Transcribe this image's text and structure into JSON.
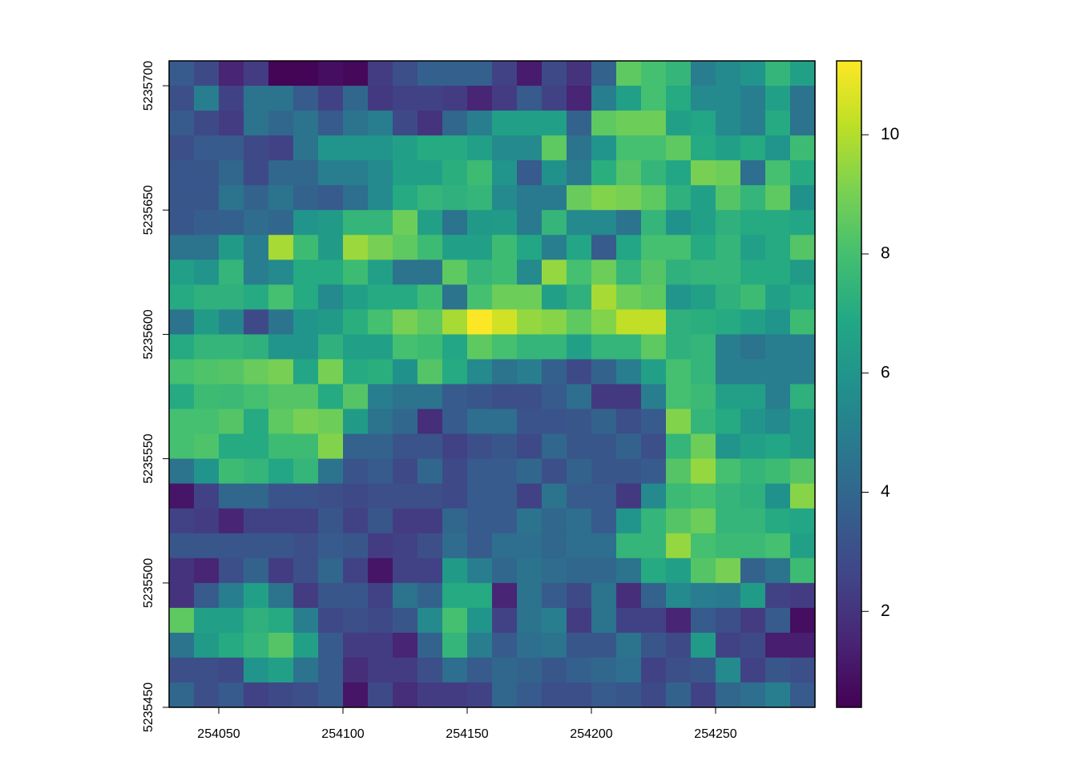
{
  "chart_data": {
    "type": "raster",
    "colormap": "viridis",
    "xlim": [
      254030,
      254290
    ],
    "ylim": [
      5235450,
      5235710
    ],
    "xticks": [
      254050,
      254100,
      254150,
      254200,
      254250
    ],
    "yticks": [
      5235450,
      5235500,
      5235550,
      5235600,
      5235650,
      5235700
    ],
    "zlim": [
      0.39,
      11.24
    ],
    "zticks": [
      2,
      4,
      6,
      8,
      10
    ],
    "values": [
      [
        3.5,
        2.8,
        1.5,
        2.3,
        0.5,
        0.5,
        0.8,
        0.6,
        2.3,
        3,
        3.7,
        3.7,
        3.7,
        2.5,
        1.2,
        2.8,
        2,
        3.8,
        8.5,
        8,
        7.5,
        5,
        5.5,
        6,
        7.5,
        6.5
      ],
      [
        3,
        5,
        2.5,
        4.5,
        4.5,
        3.5,
        2.5,
        4,
        2.2,
        2.5,
        2.5,
        2.3,
        1.5,
        2.3,
        3.5,
        2.5,
        1.5,
        5,
        6.5,
        8,
        7,
        5.5,
        5.5,
        5,
        6.5,
        4.5
      ],
      [
        3.5,
        2.8,
        2.3,
        4.5,
        4,
        4.5,
        3.5,
        4.5,
        5,
        2.8,
        2,
        4,
        5,
        6.5,
        6.5,
        6.5,
        3.8,
        8.5,
        8.8,
        8.8,
        6.5,
        6.8,
        5.5,
        5,
        7,
        4.5
      ],
      [
        3,
        3.5,
        3.5,
        2.8,
        2.5,
        4.5,
        6,
        6,
        6,
        6.5,
        7,
        7,
        6.5,
        5.5,
        5.5,
        8.5,
        4.5,
        6,
        8,
        8,
        8.5,
        7,
        6.5,
        7,
        6,
        7.8
      ],
      [
        3.3,
        3.3,
        4,
        2.8,
        4,
        4,
        5,
        5,
        5.5,
        6.5,
        6.5,
        7.2,
        7.8,
        6,
        3.5,
        5.8,
        4.8,
        7.2,
        8.3,
        7.5,
        6.8,
        9,
        8.8,
        4.3,
        8,
        7
      ],
      [
        3.3,
        3.3,
        4.5,
        3.8,
        4.5,
        3.8,
        3.5,
        4.3,
        5.5,
        7,
        7.5,
        7.3,
        7.5,
        5.5,
        4.8,
        4.8,
        8.7,
        9.2,
        9,
        8.5,
        7.3,
        6.5,
        8.3,
        7.5,
        8.5,
        5.8
      ],
      [
        3.3,
        3.6,
        3.7,
        4.2,
        4,
        6,
        6.3,
        7.5,
        7.5,
        8.8,
        6.5,
        4.5,
        6.2,
        6.3,
        4.8,
        7.5,
        5.5,
        5.5,
        4.5,
        7.5,
        5.8,
        6.5,
        7.3,
        7,
        7,
        6.8
      ],
      [
        4.5,
        4.5,
        6.3,
        5,
        9.8,
        7.8,
        6.3,
        9.6,
        9,
        8.5,
        7.8,
        6.5,
        6.5,
        7.8,
        6.8,
        5,
        6.8,
        3.5,
        6.8,
        8,
        8,
        7,
        7.5,
        6.5,
        7,
        8.3
      ],
      [
        6.5,
        6,
        7.5,
        5,
        5.5,
        7,
        7,
        7.8,
        6.5,
        4.5,
        4.5,
        8.5,
        7.5,
        7.8,
        5.5,
        9.5,
        8,
        8.8,
        7.5,
        8.3,
        7.3,
        7.5,
        7.5,
        7,
        7,
        6.3
      ],
      [
        7,
        7.3,
        7.3,
        7,
        8,
        7,
        5.5,
        6.5,
        7,
        7,
        7.8,
        4.5,
        8,
        8.8,
        8.8,
        6.5,
        7.3,
        9.8,
        8.8,
        8.5,
        6,
        6.5,
        7.3,
        7.8,
        6.5,
        7
      ],
      [
        4.5,
        6.3,
        5.3,
        2.8,
        4.5,
        6,
        6.3,
        7.2,
        8,
        9,
        8.5,
        9.8,
        11.2,
        10.5,
        9.5,
        9.3,
        8.5,
        9.2,
        10.2,
        10.2,
        7.3,
        7.2,
        7,
        6.5,
        6,
        7.8
      ],
      [
        7,
        7.5,
        7.5,
        7.3,
        6,
        6,
        7.3,
        6.5,
        6.5,
        8,
        7.8,
        6.8,
        8.5,
        8,
        7.5,
        7.5,
        6.5,
        7.5,
        7.5,
        8.5,
        7.3,
        7.5,
        5,
        4.5,
        5,
        5
      ],
      [
        8,
        8.2,
        8.3,
        8.7,
        9,
        6.8,
        9,
        7,
        7.2,
        5.8,
        8.3,
        7,
        5.5,
        4.5,
        5,
        3.7,
        2.8,
        3.8,
        5,
        6.5,
        8,
        7.5,
        5,
        5,
        5,
        5
      ],
      [
        7,
        7.8,
        7.7,
        8,
        8.3,
        8.3,
        7,
        8.3,
        5,
        4.5,
        4.5,
        3.5,
        3.3,
        3,
        3,
        3.5,
        4.3,
        2.2,
        2.2,
        5,
        8,
        7.7,
        6.5,
        6.5,
        5,
        7.3
      ],
      [
        8,
        8,
        8.3,
        7,
        8.5,
        9,
        8.8,
        6.3,
        4.5,
        4,
        1.8,
        3.5,
        4.3,
        4.3,
        3.2,
        3.2,
        3.3,
        3.8,
        3,
        3.5,
        9.2,
        7.5,
        7,
        6,
        5.5,
        6.3
      ],
      [
        8,
        8.2,
        7,
        7,
        7.8,
        7.8,
        9.2,
        3.8,
        3.8,
        3.2,
        3.2,
        2.5,
        3,
        3.3,
        2.8,
        4,
        3.3,
        3.3,
        3.8,
        3,
        7.5,
        8.8,
        6,
        6.5,
        6.8,
        6.3
      ],
      [
        4.5,
        6,
        7.8,
        7.5,
        6.8,
        7.5,
        4.5,
        3.2,
        3.5,
        2.8,
        4,
        2.8,
        3.5,
        3.5,
        4,
        3,
        3.8,
        3.3,
        3.3,
        3.5,
        8.3,
        9.5,
        8,
        7.5,
        7.8,
        8.3
      ],
      [
        1,
        2.5,
        4,
        4,
        3.2,
        3.2,
        3,
        2.8,
        3,
        3,
        3,
        2.8,
        3.5,
        3.5,
        2.5,
        4.5,
        3.5,
        3.5,
        2.2,
        5.5,
        7.7,
        8,
        7.5,
        7.3,
        5.8,
        9.3
      ],
      [
        2.5,
        2.3,
        1.5,
        2.5,
        2.5,
        2.5,
        3.3,
        2.5,
        3.3,
        2.3,
        2.3,
        4,
        3.5,
        3.5,
        4.5,
        4,
        4.3,
        3.5,
        6,
        7.5,
        8.3,
        8.8,
        7.5,
        7.5,
        7,
        6.8
      ],
      [
        3.3,
        3.3,
        3.3,
        3.3,
        3.3,
        3,
        3.5,
        3.3,
        2.3,
        2.5,
        3,
        4.2,
        3.5,
        4.3,
        4.3,
        4,
        4.3,
        4.3,
        7.5,
        7.5,
        9.5,
        8,
        7.7,
        7.7,
        8,
        6.5
      ],
      [
        2,
        1.5,
        3,
        3.8,
        2.3,
        3,
        4,
        2.5,
        1,
        2.5,
        2.5,
        6.3,
        5,
        4,
        4.5,
        4.2,
        4,
        4,
        4.5,
        7,
        6.5,
        8.3,
        9,
        3.8,
        4.5,
        7.8
      ],
      [
        2,
        3.5,
        5,
        6.5,
        4.5,
        2.3,
        3.3,
        3.3,
        2.5,
        4.5,
        3.8,
        7,
        7,
        1.5,
        4.5,
        3.5,
        2.8,
        4.5,
        1.8,
        3.8,
        5.5,
        5,
        4.8,
        6.3,
        2.5,
        2.3
      ],
      [
        8.5,
        6.5,
        6.5,
        7.3,
        7,
        5,
        2.8,
        3,
        2.8,
        3.3,
        5.5,
        8,
        6,
        2.5,
        4.5,
        5,
        2.3,
        4.5,
        2.5,
        2.5,
        1.5,
        3.5,
        3,
        2.3,
        3.5,
        0.8
      ],
      [
        4.5,
        6.3,
        7,
        7.5,
        8.3,
        6.5,
        3.5,
        2.3,
        2.3,
        1.5,
        3.8,
        7.5,
        5,
        3.5,
        4.3,
        4.5,
        3.3,
        3.3,
        4.5,
        3.3,
        2.8,
        6.3,
        2.5,
        2.8,
        1.3,
        1.3
      ],
      [
        3,
        3,
        2.8,
        6,
        6.5,
        4.5,
        3.5,
        1.8,
        2.3,
        2.3,
        3,
        4.3,
        3.5,
        4,
        3.8,
        3.3,
        3.7,
        4,
        4.3,
        2.5,
        3,
        3.3,
        5.5,
        2.5,
        3.3,
        3
      ],
      [
        4,
        3,
        3.5,
        2.5,
        2.8,
        3,
        3.5,
        1,
        2.8,
        1.8,
        2.3,
        2.3,
        2.5,
        4,
        3.5,
        3,
        3,
        3.5,
        3.3,
        2.8,
        3.8,
        2.5,
        4,
        4.3,
        5,
        3.5
      ]
    ]
  }
}
